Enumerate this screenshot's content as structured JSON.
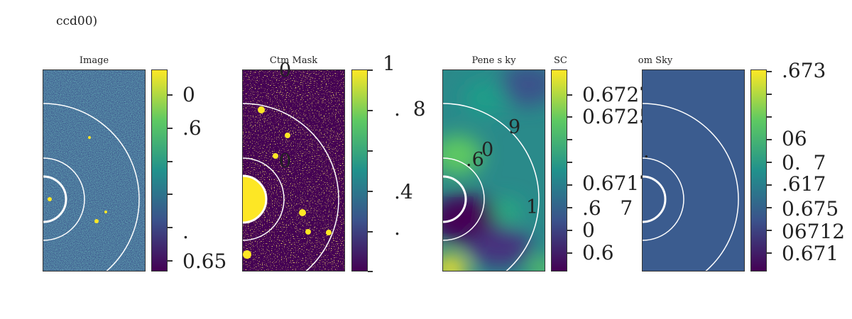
{
  "suptitle": "ccd00)",
  "chart_data": [
    {
      "type": "heatmap",
      "title": "Image",
      "colormap": "viridis",
      "colorbar_tick_labels": [
        "0",
        ".6",
        ".",
        "0.65"
      ],
      "annotations": [],
      "rings": 3,
      "fill_color": "#2f7c88"
    },
    {
      "type": "heatmap",
      "title": "Ctm Mask",
      "colormap": "viridis",
      "colorbar_tick_labels": [
        "1",
        ".  8",
        ".4",
        "."
      ],
      "annotations": [
        "0",
        "0"
      ],
      "rings": 3,
      "fill_color": "#440154"
    },
    {
      "type": "heatmap",
      "title": "Pene s       ky",
      "title_extra": "SC",
      "colormap": "viridis",
      "colorbar_tick_labels": [
        "0.6727",
        "0.6725",
        "0.6717",
        ".6   7",
        "0",
        "0.6"
      ],
      "annotations": [
        "9",
        "0",
        ".6",
        "1"
      ],
      "rings": 3,
      "fill_color": "#2a8a8a"
    },
    {
      "type": "heatmap",
      "title": "om Sky",
      "colormap": "viridis",
      "colorbar_tick_labels": [
        ".673",
        "06",
        "0.  7",
        ".617",
        "0.675",
        "06712",
        "0.671"
      ],
      "annotations": [
        "."
      ],
      "rings": 3,
      "fill_color": "#3b5c8f"
    }
  ]
}
